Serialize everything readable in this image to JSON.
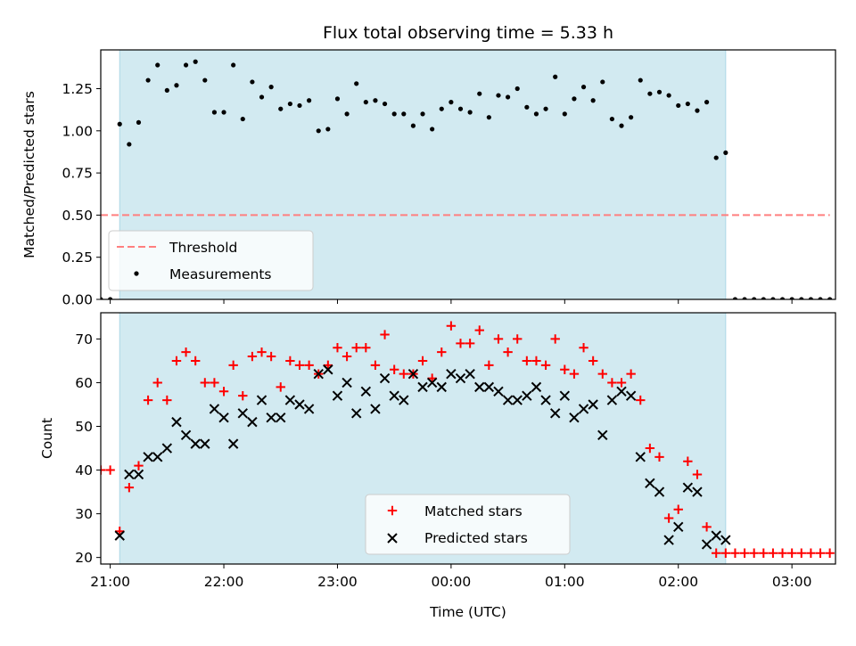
{
  "chart_data": [
    {
      "type": "scatter",
      "title": "Flux total observing time = 5.33 h",
      "xlabel": "",
      "ylabel": "Matched/Predicted stars",
      "xlim": [
        "20:55",
        "03:23"
      ],
      "ylim": [
        0,
        1.48
      ],
      "y_ticks": [
        0.0,
        0.25,
        0.5,
        0.75,
        1.0,
        1.25
      ],
      "y_tick_labels": [
        "0.00",
        "0.25",
        "0.50",
        "0.75",
        "1.00",
        "1.25"
      ],
      "x_ticks": [
        "21:00",
        "22:00",
        "23:00",
        "00:00",
        "01:00",
        "02:00",
        "03:00"
      ],
      "x_tick_labels_shown": false,
      "shaded_region": {
        "from": "21:05",
        "to": "02:25",
        "color": "#add8e6"
      },
      "legend": {
        "position": "lower-left",
        "entries": [
          "Threshold",
          "Measurements"
        ]
      },
      "threshold": {
        "name": "Threshold",
        "value": 0.5,
        "from": "20:55",
        "to": "03:20",
        "color": "#ff7f7f",
        "style": "dashed"
      },
      "series": [
        {
          "name": "Measurements",
          "marker": "dot",
          "color": "#000000",
          "x": [
            "20:55",
            "21:00",
            "21:05",
            "21:10",
            "21:15",
            "21:20",
            "21:25",
            "21:30",
            "21:35",
            "21:40",
            "21:45",
            "21:50",
            "21:55",
            "22:00",
            "22:05",
            "22:10",
            "22:15",
            "22:20",
            "22:25",
            "22:30",
            "22:35",
            "22:40",
            "22:45",
            "22:50",
            "22:55",
            "23:00",
            "23:05",
            "23:10",
            "23:15",
            "23:20",
            "23:25",
            "23:30",
            "23:35",
            "23:40",
            "23:45",
            "23:50",
            "23:55",
            "00:00",
            "00:05",
            "00:10",
            "00:15",
            "00:20",
            "00:25",
            "00:30",
            "00:35",
            "00:40",
            "00:45",
            "00:50",
            "00:55",
            "01:00",
            "01:05",
            "01:10",
            "01:15",
            "01:20",
            "01:25",
            "01:30",
            "01:35",
            "01:40",
            "01:45",
            "01:50",
            "01:55",
            "02:00",
            "02:05",
            "02:10",
            "02:15",
            "02:20",
            "02:25",
            "02:30",
            "02:35",
            "02:40",
            "02:45",
            "02:50",
            "02:55",
            "03:00",
            "03:05",
            "03:10",
            "03:15",
            "03:20"
          ],
          "y": [
            0.0,
            0.0,
            1.04,
            0.92,
            1.05,
            1.3,
            1.39,
            1.24,
            1.27,
            1.39,
            1.41,
            1.3,
            1.11,
            1.11,
            1.39,
            1.07,
            1.29,
            1.2,
            1.26,
            1.13,
            1.16,
            1.15,
            1.18,
            1.0,
            1.01,
            1.19,
            1.1,
            1.28,
            1.17,
            1.18,
            1.16,
            1.1,
            1.1,
            1.03,
            1.1,
            1.01,
            1.13,
            1.17,
            1.13,
            1.11,
            1.22,
            1.08,
            1.21,
            1.2,
            1.25,
            1.14,
            1.1,
            1.13,
            1.32,
            1.1,
            1.19,
            1.26,
            1.18,
            1.29,
            1.07,
            1.03,
            1.08,
            1.3,
            1.22,
            1.23,
            1.21,
            1.15,
            1.16,
            1.12,
            1.17,
            0.84,
            0.87,
            0.0,
            0.0,
            0.0,
            0.0,
            0.0,
            0.0,
            0.0,
            0.0,
            0.0,
            0.0,
            0.0
          ]
        }
      ]
    },
    {
      "type": "scatter",
      "title": "",
      "xlabel": "Time (UTC)",
      "ylabel": "Count",
      "xlim": [
        "20:55",
        "03:23"
      ],
      "ylim": [
        18.5,
        76
      ],
      "y_ticks": [
        20,
        30,
        40,
        50,
        60,
        70
      ],
      "y_tick_labels": [
        "20",
        "30",
        "40",
        "50",
        "60",
        "70"
      ],
      "x_ticks": [
        "21:00",
        "22:00",
        "23:00",
        "00:00",
        "01:00",
        "02:00",
        "03:00"
      ],
      "x_tick_labels": [
        "21:00",
        "22:00",
        "23:00",
        "00:00",
        "01:00",
        "02:00",
        "03:00"
      ],
      "shaded_region": {
        "from": "21:05",
        "to": "02:25",
        "color": "#add8e6"
      },
      "legend": {
        "position": "lower-center",
        "entries": [
          "Matched stars",
          "Predicted stars"
        ]
      },
      "series": [
        {
          "name": "Matched stars",
          "marker": "plus",
          "color": "#ff0000",
          "x": [
            "20:55",
            "21:00",
            "21:05",
            "21:10",
            "21:15",
            "21:20",
            "21:25",
            "21:30",
            "21:35",
            "21:40",
            "21:45",
            "21:50",
            "21:55",
            "22:00",
            "22:05",
            "22:10",
            "22:15",
            "22:20",
            "22:25",
            "22:30",
            "22:35",
            "22:40",
            "22:45",
            "22:50",
            "22:55",
            "23:00",
            "23:05",
            "23:10",
            "23:15",
            "23:20",
            "23:25",
            "23:30",
            "23:35",
            "23:40",
            "23:45",
            "23:50",
            "23:55",
            "00:00",
            "00:05",
            "00:10",
            "00:15",
            "00:20",
            "00:25",
            "00:30",
            "00:35",
            "00:40",
            "00:45",
            "00:50",
            "00:55",
            "01:00",
            "01:05",
            "01:10",
            "01:15",
            "01:20",
            "01:25",
            "01:30",
            "01:35",
            "01:40",
            "01:45",
            "01:50",
            "01:55",
            "02:00",
            "02:05",
            "02:10",
            "02:15",
            "02:20",
            "02:25",
            "02:30",
            "02:35",
            "02:40",
            "02:45",
            "02:50",
            "02:55",
            "03:00",
            "03:05",
            "03:10",
            "03:15",
            "03:20"
          ],
          "y": [
            40,
            40,
            26,
            36,
            41,
            56,
            60,
            56,
            65,
            67,
            65,
            60,
            60,
            58,
            64,
            57,
            66,
            67,
            66,
            59,
            65,
            64,
            64,
            62,
            64,
            68,
            66,
            68,
            68,
            64,
            71,
            63,
            62,
            62,
            65,
            61,
            67,
            73,
            69,
            69,
            72,
            64,
            70,
            67,
            70,
            65,
            65,
            64,
            70,
            63,
            62,
            68,
            65,
            62,
            60,
            60,
            62,
            56,
            45,
            43,
            29,
            31,
            42,
            39,
            27,
            21,
            21,
            21,
            21,
            21,
            21,
            21,
            21,
            21,
            21,
            21,
            21,
            21
          ]
        },
        {
          "name": "Predicted stars",
          "marker": "x",
          "color": "#000000",
          "x": [
            "21:05",
            "21:10",
            "21:15",
            "21:20",
            "21:25",
            "21:30",
            "21:35",
            "21:40",
            "21:45",
            "21:50",
            "21:55",
            "22:00",
            "22:05",
            "22:10",
            "22:15",
            "22:20",
            "22:25",
            "22:30",
            "22:35",
            "22:40",
            "22:45",
            "22:50",
            "22:55",
            "23:00",
            "23:05",
            "23:10",
            "23:15",
            "23:20",
            "23:25",
            "23:30",
            "23:35",
            "23:40",
            "23:45",
            "23:50",
            "23:55",
            "00:00",
            "00:05",
            "00:10",
            "00:15",
            "00:20",
            "00:25",
            "00:30",
            "00:35",
            "00:40",
            "00:45",
            "00:50",
            "00:55",
            "01:00",
            "01:05",
            "01:10",
            "01:15",
            "01:20",
            "01:25",
            "01:30",
            "01:35",
            "01:40",
            "01:45",
            "01:50",
            "01:55",
            "02:00",
            "02:05",
            "02:10",
            "02:15",
            "02:20",
            "02:25"
          ],
          "y": [
            25,
            39,
            39,
            43,
            43,
            45,
            51,
            48,
            46,
            46,
            54,
            52,
            46,
            53,
            51,
            56,
            52,
            52,
            56,
            55,
            54,
            62,
            63,
            57,
            60,
            53,
            58,
            54,
            61,
            57,
            56,
            62,
            59,
            60,
            59,
            62,
            61,
            62,
            59,
            59,
            58,
            56,
            56,
            57,
            59,
            56,
            53,
            57,
            52,
            54,
            55,
            48,
            56,
            58,
            57,
            43,
            37,
            35,
            24,
            27,
            36,
            35,
            23,
            25,
            24
          ]
        }
      ]
    }
  ]
}
